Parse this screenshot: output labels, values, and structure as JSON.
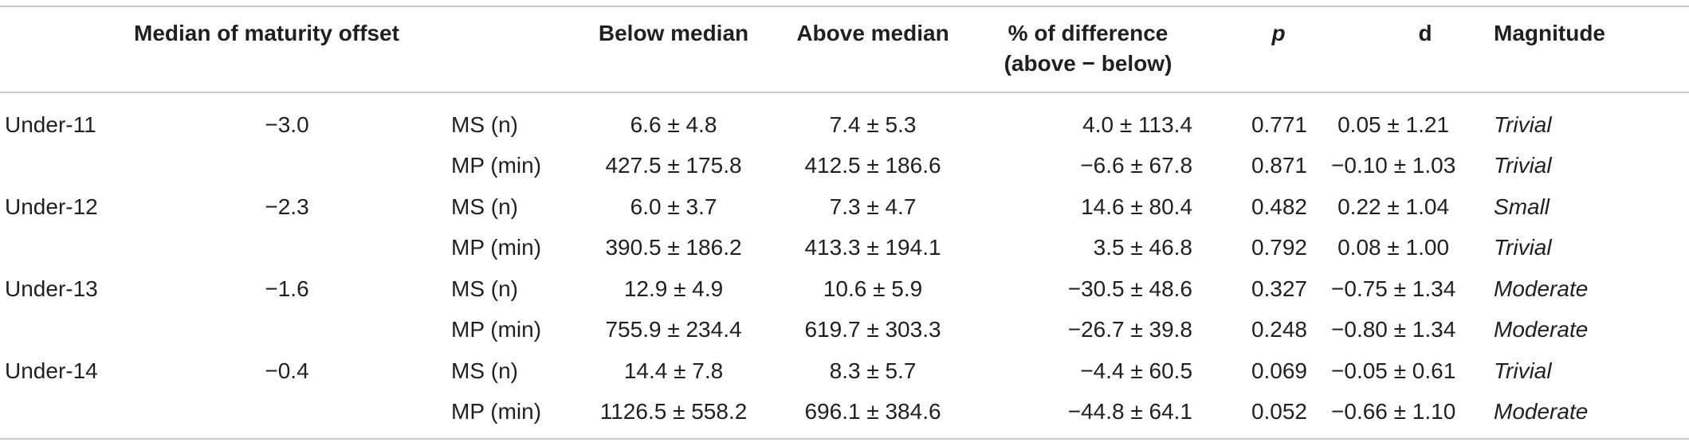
{
  "table": {
    "headers": {
      "median": "Median of maturity offset",
      "below": "Below median",
      "above": "Above median",
      "diff_line1": "% of difference",
      "diff_line2": "(above − below)",
      "p": "p",
      "d": "d",
      "magnitude": "Magnitude"
    },
    "rows": [
      {
        "group": "Under-11",
        "median": "−3.0",
        "var": "MS (n)",
        "below": "6.6 ± 4.8",
        "above": "7.4 ± 5.3",
        "diff": "4.0 ± 113.4",
        "p": "0.771",
        "d": "0.05 ± 1.21",
        "magnitude": "Trivial"
      },
      {
        "group": "",
        "median": "",
        "var": "MP (min)",
        "below": "427.5 ± 175.8",
        "above": "412.5 ± 186.6",
        "diff": "−6.6 ± 67.8",
        "p": "0.871",
        "d": "−0.10 ± 1.03",
        "magnitude": "Trivial"
      },
      {
        "group": "Under-12",
        "median": "−2.3",
        "var": "MS (n)",
        "below": "6.0 ± 3.7",
        "above": "7.3 ± 4.7",
        "diff": "14.6 ± 80.4",
        "p": "0.482",
        "d": "0.22 ± 1.04",
        "magnitude": "Small"
      },
      {
        "group": "",
        "median": "",
        "var": "MP (min)",
        "below": "390.5 ± 186.2",
        "above": "413.3 ± 194.1",
        "diff": "3.5 ± 46.8",
        "p": "0.792",
        "d": "0.08 ± 1.00",
        "magnitude": "Trivial"
      },
      {
        "group": "Under-13",
        "median": "−1.6",
        "var": "MS (n)",
        "below": "12.9 ± 4.9",
        "above": "10.6 ± 5.9",
        "diff": "−30.5 ± 48.6",
        "p": "0.327",
        "d": "−0.75 ± 1.34",
        "magnitude": "Moderate"
      },
      {
        "group": "",
        "median": "",
        "var": "MP (min)",
        "below": "755.9 ± 234.4",
        "above": "619.7 ± 303.3",
        "diff": "−26.7 ± 39.8",
        "p": "0.248",
        "d": "−0.80 ± 1.34",
        "magnitude": "Moderate"
      },
      {
        "group": "Under-14",
        "median": "−0.4",
        "var": "MS (n)",
        "below": "14.4 ± 7.8",
        "above": "8.3 ± 5.7",
        "diff": "−4.4 ± 60.5",
        "p": "0.069",
        "d": "−0.05 ± 0.61",
        "magnitude": "Trivial"
      },
      {
        "group": "",
        "median": "",
        "var": "MP (min)",
        "below": "1126.5 ± 558.2",
        "above": "696.1 ± 384.6",
        "diff": "−44.8 ± 64.1",
        "p": "0.052",
        "d": "−0.66 ± 1.10",
        "magnitude": "Moderate"
      }
    ]
  }
}
